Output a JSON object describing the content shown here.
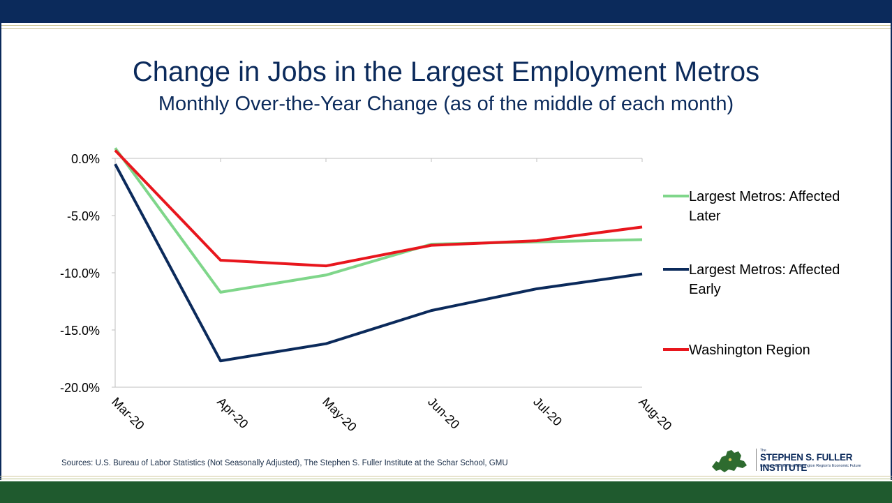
{
  "title": "Change in Jobs in the Largest Employment Metros",
  "subtitle": "Monthly Over-the-Year Change (as of the middle of each month)",
  "source": "Sources: U.S. Bureau of Labor Statistics (Not Seasonally Adjusted), The Stephen S. Fuller Institute at the Schar School, GMU",
  "logo": {
    "the": "The",
    "name": "STEPHEN S. FULLER INSTITUTE",
    "tagline": "for Research on the Washington Region's Economic Future"
  },
  "colors": {
    "navy": "#0b2a5b",
    "green_band": "#1f5a2e",
    "light_green": "#7fd68a",
    "red": "#e8161d"
  },
  "chart_data": {
    "type": "line",
    "categories": [
      "Mar-20",
      "Apr-20",
      "May-20",
      "Jun-20",
      "Jul-20",
      "Aug-20"
    ],
    "ylim": [
      -20,
      0
    ],
    "yticks": [
      0,
      -5,
      -10,
      -15,
      -20
    ],
    "ytick_labels": [
      "0.0%",
      "-5.0%",
      "-10.0%",
      "-15.0%",
      "-20.0%"
    ],
    "grid": false,
    "legend_position": "right",
    "series": [
      {
        "name": "Largest Metros: Affected Later",
        "color": "#7fd68a",
        "values": [
          0.9,
          -11.7,
          -10.2,
          -7.5,
          -7.3,
          -7.1
        ]
      },
      {
        "name": "Largest Metros: Affected Early",
        "color": "#0b2a5b",
        "values": [
          -0.5,
          -17.7,
          -16.2,
          -13.3,
          -11.4,
          -10.1
        ]
      },
      {
        "name": "Washington Region",
        "color": "#e8161d",
        "values": [
          0.7,
          -8.9,
          -9.4,
          -7.6,
          -7.2,
          -6.0
        ]
      }
    ]
  }
}
